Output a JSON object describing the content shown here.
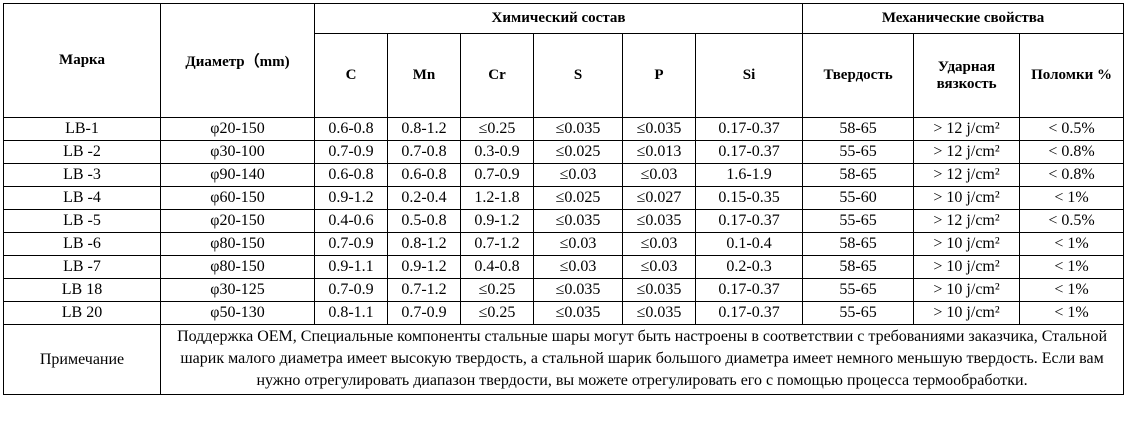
{
  "headers": {
    "grade": "Марка",
    "diameter": "Диаметр（mm)",
    "chem_group": "Химический состав",
    "mech_group": "Механические свойства",
    "chem_cols": [
      "C",
      "Mn",
      "Cr",
      "S",
      "P",
      "Si"
    ],
    "hardness": "Твердость",
    "impact_line1": "Ударная",
    "impact_line2": "вязкость",
    "breakage": "Поломки %"
  },
  "rows": [
    {
      "grade": "LB-1",
      "diameter": "φ20-150",
      "c": "0.6-0.8",
      "mn": "0.8-1.2",
      "cr": "≤0.25",
      "s": "≤0.035",
      "p": "≤0.035",
      "si": "0.17-0.37",
      "hardness": "58-65",
      "impact": "> 12 j/cm²",
      "breakage": "< 0.5%"
    },
    {
      "grade": "LB -2",
      "diameter": "φ30-100",
      "c": "0.7-0.9",
      "mn": "0.7-0.8",
      "cr": "0.3-0.9",
      "s": "≤0.025",
      "p": "≤0.013",
      "si": "0.17-0.37",
      "hardness": "55-65",
      "impact": "> 12 j/cm²",
      "breakage": "< 0.8%"
    },
    {
      "grade": "LB -3",
      "diameter": "φ90-140",
      "c": "0.6-0.8",
      "mn": "0.6-0.8",
      "cr": "0.7-0.9",
      "s": "≤0.03",
      "p": "≤0.03",
      "si": "1.6-1.9",
      "hardness": "58-65",
      "impact": "> 12 j/cm²",
      "breakage": "< 0.8%"
    },
    {
      "grade": "LB -4",
      "diameter": "φ60-150",
      "c": "0.9-1.2",
      "mn": "0.2-0.4",
      "cr": "1.2-1.8",
      "s": "≤0.025",
      "p": "≤0.027",
      "si": "0.15-0.35",
      "hardness": "55-60",
      "impact": "> 10 j/cm²",
      "breakage": "< 1%"
    },
    {
      "grade": "LB -5",
      "diameter": "φ20-150",
      "c": "0.4-0.6",
      "mn": "0.5-0.8",
      "cr": "0.9-1.2",
      "s": "≤0.035",
      "p": "≤0.035",
      "si": "0.17-0.37",
      "hardness": "55-65",
      "impact": "> 12 j/cm²",
      "breakage": "< 0.5%"
    },
    {
      "grade": "LB -6",
      "diameter": "φ80-150",
      "c": "0.7-0.9",
      "mn": "0.8-1.2",
      "cr": "0.7-1.2",
      "s": "≤0.03",
      "p": "≤0.03",
      "si": "0.1-0.4",
      "hardness": "58-65",
      "impact": "> 10 j/cm²",
      "breakage": "< 1%"
    },
    {
      "grade": "LB -7",
      "diameter": "φ80-150",
      "c": "0.9-1.1",
      "mn": "0.9-1.2",
      "cr": "0.4-0.8",
      "s": "≤0.03",
      "p": "≤0.03",
      "si": "0.2-0.3",
      "hardness": "58-65",
      "impact": "> 10 j/cm²",
      "breakage": "< 1%"
    },
    {
      "grade": "LB 18",
      "diameter": "φ30-125",
      "c": "0.7-0.9",
      "mn": "0.7-1.2",
      "cr": "≤0.25",
      "s": "≤0.035",
      "p": "≤0.035",
      "si": "0.17-0.37",
      "hardness": "55-65",
      "impact": "> 10 j/cm²",
      "breakage": "< 1%"
    },
    {
      "grade": "LB 20",
      "diameter": "φ50-130",
      "c": "0.8-1.1",
      "mn": "0.7-0.9",
      "cr": "≤0.25",
      "s": "≤0.035",
      "p": "≤0.035",
      "si": "0.17-0.37",
      "hardness": "55-65",
      "impact": "> 10 j/cm²",
      "breakage": "< 1%"
    }
  ],
  "note": {
    "label": "Примечание",
    "text": "Поддержка OEM, Специальные компоненты стальные шары могут быть настроены в соответствии с требованиями заказчика, Стальной шарик малого диаметра имеет высокую твердость, а стальной шарик большого диаметра имеет немного меньшую твердость. Если вам нужно отрегулировать диапазон твердости, вы можете отрегулировать его с помощью процесса термообработки."
  }
}
